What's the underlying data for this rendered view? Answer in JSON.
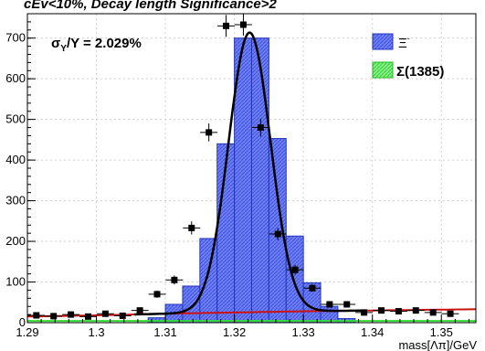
{
  "chart_data": {
    "type": "bar",
    "title": "cEv<10%, Decay length Significance>2",
    "xlabel": "mass[Λπ]/GeV",
    "ylabel": "",
    "xlim": [
      1.29,
      1.355
    ],
    "ylim": [
      0,
      760
    ],
    "x_ticks": [
      "1.29",
      "1.3",
      "1.31",
      "1.32",
      "1.33",
      "1.34",
      "1.35"
    ],
    "y_ticks": [
      "0",
      "100",
      "200",
      "300",
      "400",
      "500",
      "600",
      "700"
    ],
    "annotation_sigma": "σ",
    "annotation_sigma_sub": "Y",
    "annotation_rest": "/Y = 2.029%",
    "legend": [
      {
        "label": "Ξ",
        "sup": "-",
        "color": "#4a5ce8"
      },
      {
        "label": "Σ(1385)",
        "sup": "",
        "color": "#55ee55"
      }
    ],
    "grid": true,
    "series": [
      {
        "name": "Ξ",
        "kind": "histogram",
        "bin_width": 0.0025,
        "bins": [
          {
            "x0": 1.3075,
            "x1": 1.31,
            "y": 12
          },
          {
            "x0": 1.31,
            "x1": 1.3125,
            "y": 45
          },
          {
            "x0": 1.3125,
            "x1": 1.315,
            "y": 90
          },
          {
            "x0": 1.315,
            "x1": 1.3175,
            "y": 207
          },
          {
            "x0": 1.3175,
            "x1": 1.32,
            "y": 440
          },
          {
            "x0": 1.32,
            "x1": 1.3225,
            "y": 700
          },
          {
            "x0": 1.3225,
            "x1": 1.325,
            "y": 700
          },
          {
            "x0": 1.325,
            "x1": 1.3275,
            "y": 453
          },
          {
            "x0": 1.3275,
            "x1": 1.33,
            "y": 213
          },
          {
            "x0": 1.33,
            "x1": 1.3325,
            "y": 98
          },
          {
            "x0": 1.3325,
            "x1": 1.335,
            "y": 40
          },
          {
            "x0": 1.335,
            "x1": 1.3375,
            "y": 10
          }
        ]
      },
      {
        "name": "Σ(1385)",
        "kind": "baseline",
        "y": 2
      },
      {
        "name": "data",
        "kind": "points",
        "x_err": 0.00125,
        "points": [
          {
            "x": 1.2913,
            "y": 18,
            "e": 5
          },
          {
            "x": 1.2938,
            "y": 16,
            "e": 5
          },
          {
            "x": 1.2963,
            "y": 20,
            "e": 5
          },
          {
            "x": 1.2988,
            "y": 15,
            "e": 5
          },
          {
            "x": 1.3013,
            "y": 22,
            "e": 5
          },
          {
            "x": 1.3038,
            "y": 17,
            "e": 5
          },
          {
            "x": 1.3063,
            "y": 30,
            "e": 6
          },
          {
            "x": 1.3088,
            "y": 70,
            "e": 9
          },
          {
            "x": 1.3113,
            "y": 105,
            "e": 11
          },
          {
            "x": 1.3138,
            "y": 233,
            "e": 16
          },
          {
            "x": 1.3163,
            "y": 468,
            "e": 22
          },
          {
            "x": 1.3188,
            "y": 730,
            "e": 27
          },
          {
            "x": 1.3213,
            "y": 733,
            "e": 27
          },
          {
            "x": 1.3238,
            "y": 480,
            "e": 22
          },
          {
            "x": 1.3263,
            "y": 218,
            "e": 15
          },
          {
            "x": 1.3288,
            "y": 130,
            "e": 12
          },
          {
            "x": 1.3313,
            "y": 85,
            "e": 9
          },
          {
            "x": 1.3338,
            "y": 45,
            "e": 7
          },
          {
            "x": 1.3363,
            "y": 45,
            "e": 7
          },
          {
            "x": 1.3388,
            "y": 25,
            "e": 5
          },
          {
            "x": 1.3413,
            "y": 30,
            "e": 6
          },
          {
            "x": 1.3438,
            "y": 28,
            "e": 6
          },
          {
            "x": 1.3463,
            "y": 30,
            "e": 6
          },
          {
            "x": 1.3488,
            "y": 25,
            "e": 5
          },
          {
            "x": 1.3513,
            "y": 22,
            "e": 5
          }
        ]
      },
      {
        "name": "fit",
        "kind": "curve",
        "amplitude": 688,
        "mean": 1.3222,
        "sigma": 0.00305,
        "background": [
          {
            "x": 1.29,
            "y": 15
          },
          {
            "x": 1.3,
            "y": 18
          },
          {
            "x": 1.31,
            "y": 22
          },
          {
            "x": 1.32,
            "y": 25
          },
          {
            "x": 1.33,
            "y": 28
          },
          {
            "x": 1.34,
            "y": 30
          },
          {
            "x": 1.355,
            "y": 33
          }
        ]
      }
    ]
  }
}
